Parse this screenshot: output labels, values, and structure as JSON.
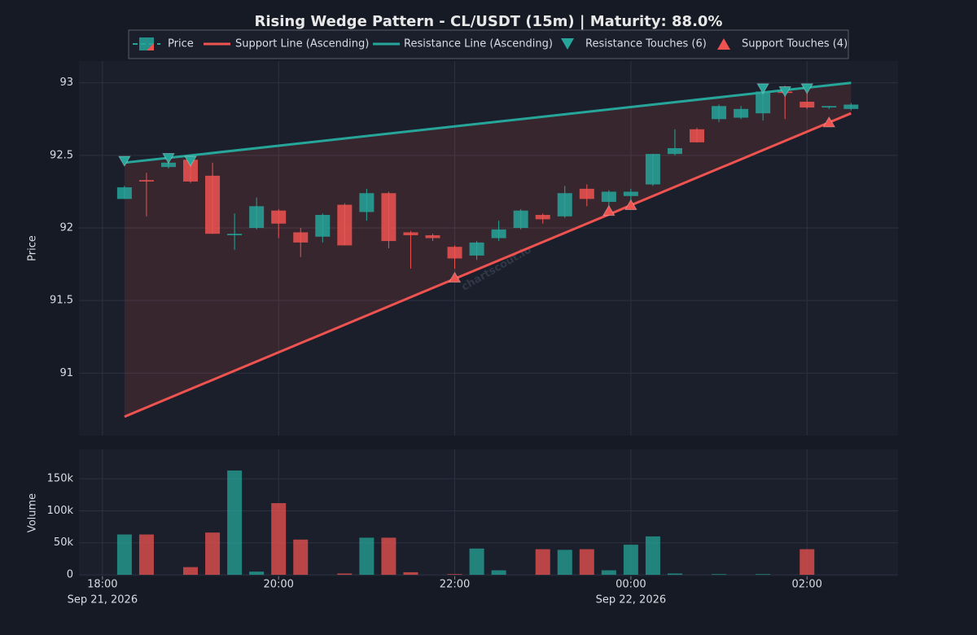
{
  "chart_data": [
    {
      "type": "candlestick",
      "title": "Rising Wedge Pattern - CL/USDT (15m) | Maturity: 88.0%",
      "ylabel": "Price",
      "watermark": "chartscout.io",
      "name": "Price",
      "up_color": "#26a69a",
      "down_color": "#ef5350",
      "x": [
        "2026-09-21T18:15",
        "2026-09-21T18:30",
        "2026-09-21T18:45",
        "2026-09-21T19:00",
        "2026-09-21T19:15",
        "2026-09-21T19:30",
        "2026-09-21T19:45",
        "2026-09-21T20:00",
        "2026-09-21T20:15",
        "2026-09-21T20:30",
        "2026-09-21T20:45",
        "2026-09-21T21:00",
        "2026-09-21T21:15",
        "2026-09-21T21:30",
        "2026-09-21T21:45",
        "2026-09-21T22:00",
        "2026-09-21T22:15",
        "2026-09-21T22:30",
        "2026-09-21T22:45",
        "2026-09-21T23:00",
        "2026-09-21T23:15",
        "2026-09-21T23:30",
        "2026-09-21T23:45",
        "2026-09-22T00:00",
        "2026-09-22T00:15",
        "2026-09-22T00:30",
        "2026-09-22T00:45",
        "2026-09-22T01:00",
        "2026-09-22T01:15",
        "2026-09-22T01:30",
        "2026-09-22T01:45",
        "2026-09-22T02:00",
        "2026-09-22T02:15",
        "2026-09-22T02:30"
      ],
      "open": [
        92.2,
        92.33,
        92.42,
        92.47,
        92.36,
        91.95,
        92.0,
        92.12,
        91.97,
        91.94,
        92.16,
        92.11,
        92.24,
        91.97,
        91.95,
        91.87,
        91.81,
        91.93,
        92.0,
        92.09,
        92.08,
        92.27,
        92.18,
        92.22,
        92.3,
        92.51,
        92.68,
        92.75,
        92.76,
        92.79,
        92.94,
        92.87,
        92.83,
        92.82
      ],
      "high": [
        92.29,
        92.38,
        92.49,
        92.48,
        92.45,
        92.1,
        92.21,
        92.13,
        92.0,
        92.1,
        92.17,
        92.27,
        92.25,
        91.98,
        91.96,
        91.88,
        91.91,
        92.05,
        92.13,
        92.1,
        92.29,
        92.3,
        92.26,
        92.27,
        92.51,
        92.68,
        92.69,
        92.85,
        92.84,
        92.97,
        92.98,
        92.95,
        92.84,
        92.86
      ],
      "low": [
        92.2,
        92.08,
        92.41,
        92.31,
        91.96,
        91.85,
        91.99,
        91.93,
        91.8,
        91.9,
        91.88,
        92.05,
        91.86,
        91.72,
        91.91,
        91.72,
        91.78,
        91.91,
        91.99,
        92.03,
        92.07,
        92.15,
        92.13,
        92.18,
        92.29,
        92.5,
        92.59,
        92.73,
        92.75,
        92.74,
        92.75,
        92.82,
        92.82,
        92.81
      ],
      "close": [
        92.28,
        92.32,
        92.45,
        92.32,
        91.96,
        91.96,
        92.15,
        92.03,
        91.9,
        92.09,
        91.88,
        92.24,
        91.91,
        91.95,
        91.93,
        91.79,
        91.9,
        91.99,
        92.12,
        92.06,
        92.24,
        92.2,
        92.25,
        92.25,
        92.51,
        92.55,
        92.59,
        92.84,
        92.82,
        92.94,
        92.93,
        92.83,
        92.84,
        92.85
      ],
      "lines": [
        {
          "name": "Support Line (Ascending)",
          "color": "#ef5350",
          "x": [
            "2026-09-21T18:15",
            "2026-09-22T02:30"
          ],
          "values": [
            90.7,
            92.79
          ]
        },
        {
          "name": "Resistance Line (Ascending)",
          "color": "#26a69a",
          "x": [
            "2026-09-21T18:15",
            "2026-09-22T02:30"
          ],
          "values": [
            92.45,
            93.0
          ]
        }
      ],
      "markers": [
        {
          "name": "Resistance Touches (6)",
          "color": "#26a69a",
          "marker": "down",
          "x": [
            "2026-09-21T18:15",
            "2026-09-21T18:45",
            "2026-09-21T19:00",
            "2026-09-22T01:30",
            "2026-09-22T01:45",
            "2026-09-22T02:00"
          ],
          "values": [
            92.46,
            92.48,
            92.46,
            92.96,
            92.94,
            92.96
          ]
        },
        {
          "name": "Support Touches (4)",
          "color": "#ef5350",
          "marker": "up",
          "x": [
            "2026-09-21T22:00",
            "2026-09-21T23:45",
            "2026-09-22T00:00",
            "2026-09-22T02:15"
          ],
          "values": [
            91.66,
            92.12,
            92.16,
            92.73
          ]
        }
      ],
      "xlim": [
        "2026-09-21T17:44",
        "2026-09-22T03:02"
      ],
      "ylim": [
        90.57,
        93.15
      ],
      "yticks": [
        91,
        91.5,
        92,
        92.5,
        93
      ],
      "grid": true
    },
    {
      "type": "bar",
      "ylabel": "Volume",
      "x": [
        "2026-09-21T18:15",
        "2026-09-21T18:30",
        "2026-09-21T18:45",
        "2026-09-21T19:00",
        "2026-09-21T19:15",
        "2026-09-21T19:30",
        "2026-09-21T19:45",
        "2026-09-21T20:00",
        "2026-09-21T20:15",
        "2026-09-21T20:30",
        "2026-09-21T20:45",
        "2026-09-21T21:00",
        "2026-09-21T21:15",
        "2026-09-21T21:30",
        "2026-09-21T21:45",
        "2026-09-21T22:00",
        "2026-09-21T22:15",
        "2026-09-21T22:30",
        "2026-09-21T22:45",
        "2026-09-21T23:00",
        "2026-09-21T23:15",
        "2026-09-21T23:30",
        "2026-09-21T23:45",
        "2026-09-22T00:00",
        "2026-09-22T00:15",
        "2026-09-22T00:30",
        "2026-09-22T00:45",
        "2026-09-22T01:00",
        "2026-09-22T01:15",
        "2026-09-22T01:30",
        "2026-09-22T01:45",
        "2026-09-22T02:00",
        "2026-09-22T02:15",
        "2026-09-22T02:30"
      ],
      "values": [
        63000,
        63000,
        0,
        12000,
        66000,
        163000,
        5000,
        112000,
        55000,
        0,
        2000,
        58000,
        58000,
        4000,
        0,
        1000,
        41000,
        7000,
        0,
        40000,
        39000,
        40000,
        7000,
        47000,
        60000,
        2000,
        0,
        1000,
        0,
        1000,
        0,
        40000,
        0,
        0
      ],
      "xlim": [
        "2026-09-21T17:44",
        "2026-09-22T03:02"
      ],
      "ylim": [
        -2500,
        196000
      ],
      "yticks": [
        0,
        {
          "value": 50000,
          "label": "50k"
        },
        {
          "value": 100000,
          "label": "100k"
        },
        {
          "value": 150000,
          "label": "150k"
        }
      ],
      "xticks": [
        {
          "value": "2026-09-21T18:00",
          "label": "18:00",
          "sublabel": "Sep 21, 2026"
        },
        {
          "value": "2026-09-21T20:00",
          "label": "20:00"
        },
        {
          "value": "2026-09-21T22:00",
          "label": "22:00"
        },
        {
          "value": "2026-09-22T00:00",
          "label": "00:00",
          "sublabel": "Sep 22, 2026"
        },
        {
          "value": "2026-09-22T02:00",
          "label": "02:00"
        }
      ],
      "grid": true
    }
  ]
}
